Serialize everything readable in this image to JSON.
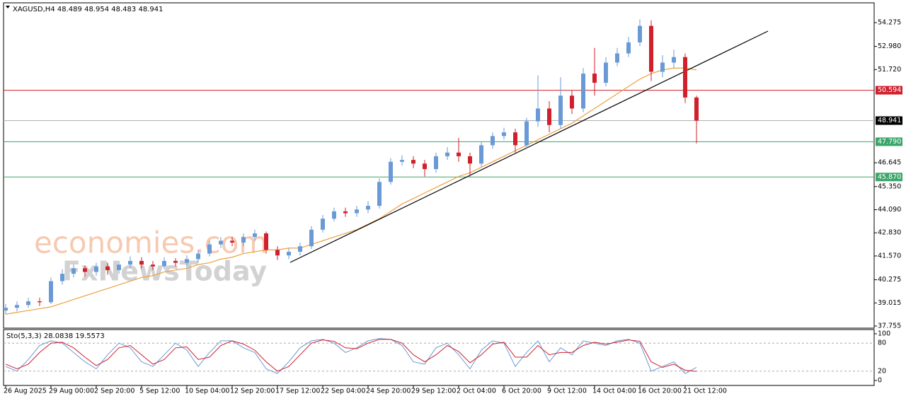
{
  "chart_data": {
    "type": "candlestick",
    "header": {
      "symbol": "XAGUSD,H4",
      "ohlc": [
        48.489,
        48.954,
        48.483,
        48.941
      ]
    },
    "categories": [
      "26 Aug 2025",
      null,
      null,
      null,
      "29 Aug 00:00",
      null,
      null,
      null,
      "2 Sep 20:00",
      null,
      null,
      null,
      "5 Sep 12:00",
      null,
      null,
      null,
      "10 Sep 04:00",
      null,
      null,
      null,
      "12 Sep 20:00",
      null,
      null,
      null,
      "17 Sep 12:00",
      null,
      null,
      null,
      "22 Sep 04:00",
      null,
      null,
      null,
      "24 Sep 20:00",
      null,
      null,
      null,
      "29 Sep 12:00",
      null,
      null,
      null,
      "2 Oct 04:00",
      null,
      null,
      null,
      "6 Oct 20:00",
      null,
      null,
      null,
      "9 Oct 12:00",
      null,
      null,
      null,
      "14 Oct 04:00",
      null,
      null,
      null,
      "16 Oct 20:00",
      null,
      null,
      null,
      "21 Oct 12:00",
      null
    ],
    "open": [
      38.6,
      38.75,
      38.9,
      39.1,
      39.05,
      40.2,
      40.6,
      40.9,
      40.7,
      41.0,
      40.8,
      41.1,
      41.3,
      41.1,
      41.0,
      41.3,
      41.2,
      41.4,
      41.7,
      42.2,
      42.4,
      42.3,
      42.6,
      42.8,
      41.9,
      41.6,
      41.8,
      42.1,
      43.0,
      43.6,
      44.0,
      43.9,
      44.1,
      44.3,
      45.6,
      46.7,
      46.8,
      46.6,
      46.3,
      47.0,
      47.2,
      47.0,
      46.6,
      47.6,
      48.1,
      48.3,
      47.6,
      48.9,
      49.6,
      48.7,
      50.3,
      49.6,
      51.5,
      51.0,
      52.1,
      52.6,
      53.2,
      54.1,
      51.6,
      52.1,
      52.4,
      50.2
    ],
    "high": [
      38.95,
      39.1,
      39.3,
      39.3,
      40.4,
      40.85,
      41.1,
      41.05,
      41.2,
      41.2,
      41.3,
      41.55,
      41.5,
      41.3,
      41.5,
      41.45,
      41.6,
      41.9,
      42.4,
      42.6,
      42.6,
      42.8,
      43.0,
      42.9,
      42.1,
      42.0,
      42.3,
      43.2,
      43.8,
      44.2,
      44.2,
      44.3,
      44.55,
      45.8,
      46.9,
      47.05,
      47.0,
      46.8,
      47.2,
      47.5,
      48.0,
      47.2,
      47.8,
      48.3,
      48.55,
      48.5,
      49.1,
      51.4,
      50.0,
      51.3,
      50.6,
      51.8,
      52.9,
      52.4,
      52.9,
      53.5,
      54.45,
      54.4,
      52.5,
      52.8,
      52.6,
      50.3
    ],
    "low": [
      38.4,
      38.55,
      38.75,
      38.85,
      38.95,
      40.0,
      40.4,
      40.45,
      40.5,
      40.55,
      40.6,
      40.9,
      40.9,
      40.8,
      40.85,
      41.0,
      41.0,
      41.2,
      41.55,
      42.0,
      42.1,
      42.1,
      42.4,
      41.7,
      41.35,
      41.4,
      41.6,
      41.95,
      42.85,
      43.45,
      43.7,
      43.7,
      43.9,
      44.15,
      45.45,
      46.5,
      46.35,
      45.9,
      46.1,
      46.8,
      46.7,
      45.9,
      46.4,
      47.4,
      47.9,
      47.2,
      47.4,
      48.6,
      48.3,
      48.5,
      49.3,
      49.4,
      50.3,
      50.8,
      51.9,
      52.4,
      53.0,
      51.1,
      51.3,
      51.8,
      49.9,
      47.7
    ],
    "close": [
      38.75,
      38.9,
      39.1,
      39.05,
      40.2,
      40.6,
      40.9,
      40.7,
      41.0,
      40.8,
      41.1,
      41.3,
      41.1,
      41.0,
      41.3,
      41.2,
      41.4,
      41.7,
      42.2,
      42.4,
      42.3,
      42.6,
      42.8,
      41.9,
      41.6,
      41.8,
      42.1,
      43.0,
      43.6,
      44.0,
      43.9,
      44.1,
      44.3,
      45.6,
      46.7,
      46.8,
      46.6,
      46.3,
      47.0,
      47.2,
      47.0,
      46.6,
      47.6,
      48.1,
      48.3,
      47.6,
      48.9,
      49.6,
      48.7,
      50.3,
      49.6,
      51.5,
      51.0,
      52.1,
      52.6,
      53.2,
      54.1,
      51.6,
      52.1,
      52.4,
      50.2,
      48.94
    ],
    "up_color": "#6a9ad6",
    "down_color": "#d0202c",
    "ma": {
      "color": "#eda040",
      "values": [
        38.4,
        38.5,
        38.6,
        38.7,
        38.8,
        39.0,
        39.2,
        39.4,
        39.6,
        39.8,
        40.0,
        40.2,
        40.4,
        40.5,
        40.7,
        40.8,
        40.9,
        41.1,
        41.2,
        41.4,
        41.5,
        41.7,
        41.8,
        41.9,
        41.9,
        42.0,
        42.0,
        42.2,
        42.4,
        42.6,
        42.8,
        43.0,
        43.3,
        43.6,
        44.0,
        44.4,
        44.7,
        45.0,
        45.3,
        45.6,
        45.9,
        46.1,
        46.4,
        46.7,
        47.0,
        47.3,
        47.6,
        47.9,
        48.2,
        48.5,
        48.8,
        49.2,
        49.6,
        50.0,
        50.4,
        50.8,
        51.2,
        51.5,
        51.7,
        51.8,
        51.8,
        51.7
      ]
    },
    "ylim": [
      37.678,
      55.315
    ],
    "yticks": [
      54.275,
      {
        "value": 52.98,
        "label": "52.980"
      },
      {
        "value": 51.72,
        "label": "51.720"
      },
      46.645,
      {
        "value": 45.35,
        "label": "45.350"
      },
      {
        "value": 44.09,
        "label": "44.090"
      },
      {
        "value": 42.83,
        "label": "42.830"
      },
      {
        "value": 41.57,
        "label": "41.570"
      },
      40.275,
      39.015,
      37.755
    ],
    "levels": [
      {
        "value": 50.594,
        "color": "#d0202c"
      },
      {
        "value": 47.79,
        "label": "47.790",
        "color": "#3aa66a"
      },
      {
        "value": 45.87,
        "label": "45.870",
        "color": "#3aa66a"
      }
    ],
    "price_line": 48.941,
    "watermarks": [
      "economies.com",
      "FxNewsToday"
    ],
    "oscillator": {
      "label": "Sto(5,3,3)",
      "ylim": [
        -10.6,
        109.1
      ],
      "yticks": [
        0,
        20,
        80,
        100
      ],
      "series": [
        {
          "color": "#6a9ad6",
          "values": [
            30,
            20,
            45,
            75,
            85,
            80,
            60,
            40,
            25,
            55,
            80,
            70,
            40,
            30,
            55,
            80,
            65,
            30,
            60,
            85,
            85,
            70,
            60,
            25,
            15,
            40,
            70,
            85,
            88,
            80,
            60,
            70,
            85,
            90,
            88,
            75,
            40,
            35,
            70,
            80,
            55,
            25,
            65,
            85,
            80,
            30,
            60,
            85,
            40,
            70,
            55,
            85,
            80,
            75,
            85,
            88,
            80,
            20,
            30,
            40,
            15,
            28.0838
          ]
        },
        {
          "color": "#d0202c",
          "values": [
            35,
            25,
            35,
            60,
            80,
            82,
            70,
            50,
            32,
            45,
            70,
            75,
            55,
            35,
            45,
            70,
            72,
            45,
            50,
            75,
            85,
            78,
            65,
            40,
            20,
            30,
            55,
            80,
            87,
            84,
            70,
            68,
            80,
            88,
            88,
            80,
            55,
            40,
            55,
            75,
            62,
            38,
            55,
            78,
            82,
            50,
            50,
            75,
            55,
            60,
            60,
            75,
            82,
            78,
            82,
            87,
            84,
            40,
            28,
            35,
            22,
            19.5573
          ]
        }
      ]
    }
  }
}
